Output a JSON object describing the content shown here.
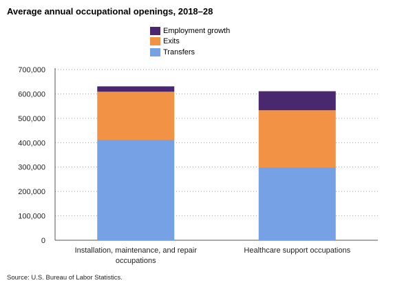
{
  "title": "Average annual occupational openings, 2018–28",
  "source": "Source: U.S. Bureau of Labor Statistics.",
  "legend": [
    {
      "name": "Employment growth",
      "color": "#4a2870"
    },
    {
      "name": "Exits",
      "color": "#f29245"
    },
    {
      "name": "Transfers",
      "color": "#77a1e5"
    }
  ],
  "chart_data": {
    "type": "bar",
    "stacked": true,
    "categories": [
      "Installation, maintenance, and repair occupations",
      "Healthcare support occupations"
    ],
    "series": [
      {
        "name": "Transfers",
        "color": "#77a1e5",
        "values": [
          412000,
          299000
        ]
      },
      {
        "name": "Exits",
        "color": "#f29245",
        "values": [
          197000,
          234000
        ]
      },
      {
        "name": "Employment growth",
        "color": "#4a2870",
        "values": [
          22000,
          78000
        ]
      }
    ],
    "ylim": [
      0,
      700000
    ],
    "yticks": [
      0,
      100000,
      200000,
      300000,
      400000,
      500000,
      600000,
      700000
    ],
    "ytick_labels": [
      "0",
      "100,000",
      "200,000",
      "300,000",
      "400,000",
      "500,000",
      "600,000",
      "700,000"
    ],
    "grid": true,
    "legend_position": "top-center"
  }
}
